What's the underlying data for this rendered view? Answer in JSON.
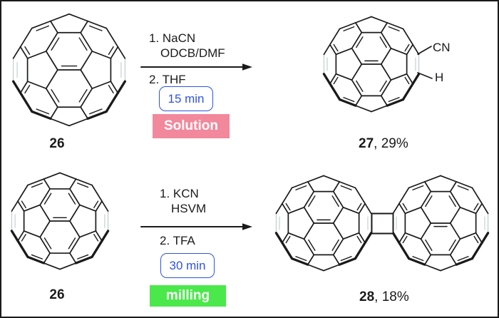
{
  "figure": {
    "type": "chemical-reaction-scheme",
    "description": "Fullerene C60 cyanation: solution vs mechanochemical milling"
  },
  "reactions": [
    {
      "reactant_label": "26",
      "step1_line1": "1. NaCN",
      "step1_line2": "ODCB/DMF",
      "step2": "2. THF",
      "time": "15 min",
      "method": "Solution",
      "product_label": "27",
      "product_yield": ", 29%",
      "substituent_top": "CN",
      "substituent_bottom": "H"
    },
    {
      "reactant_label": "26",
      "step1_line1": "1. KCN",
      "step1_line2": "HSVM",
      "step2": "2. TFA",
      "time": "30 min",
      "method": "milling",
      "product_label": "28",
      "product_yield": ", 18%"
    }
  ],
  "colors": {
    "solution_bg": "#f2889c",
    "milling_bg": "#4be84b",
    "time_blue": "#2e53e2",
    "bond_front": "#1a1a1a",
    "bond_back": "#b9c7cb"
  }
}
